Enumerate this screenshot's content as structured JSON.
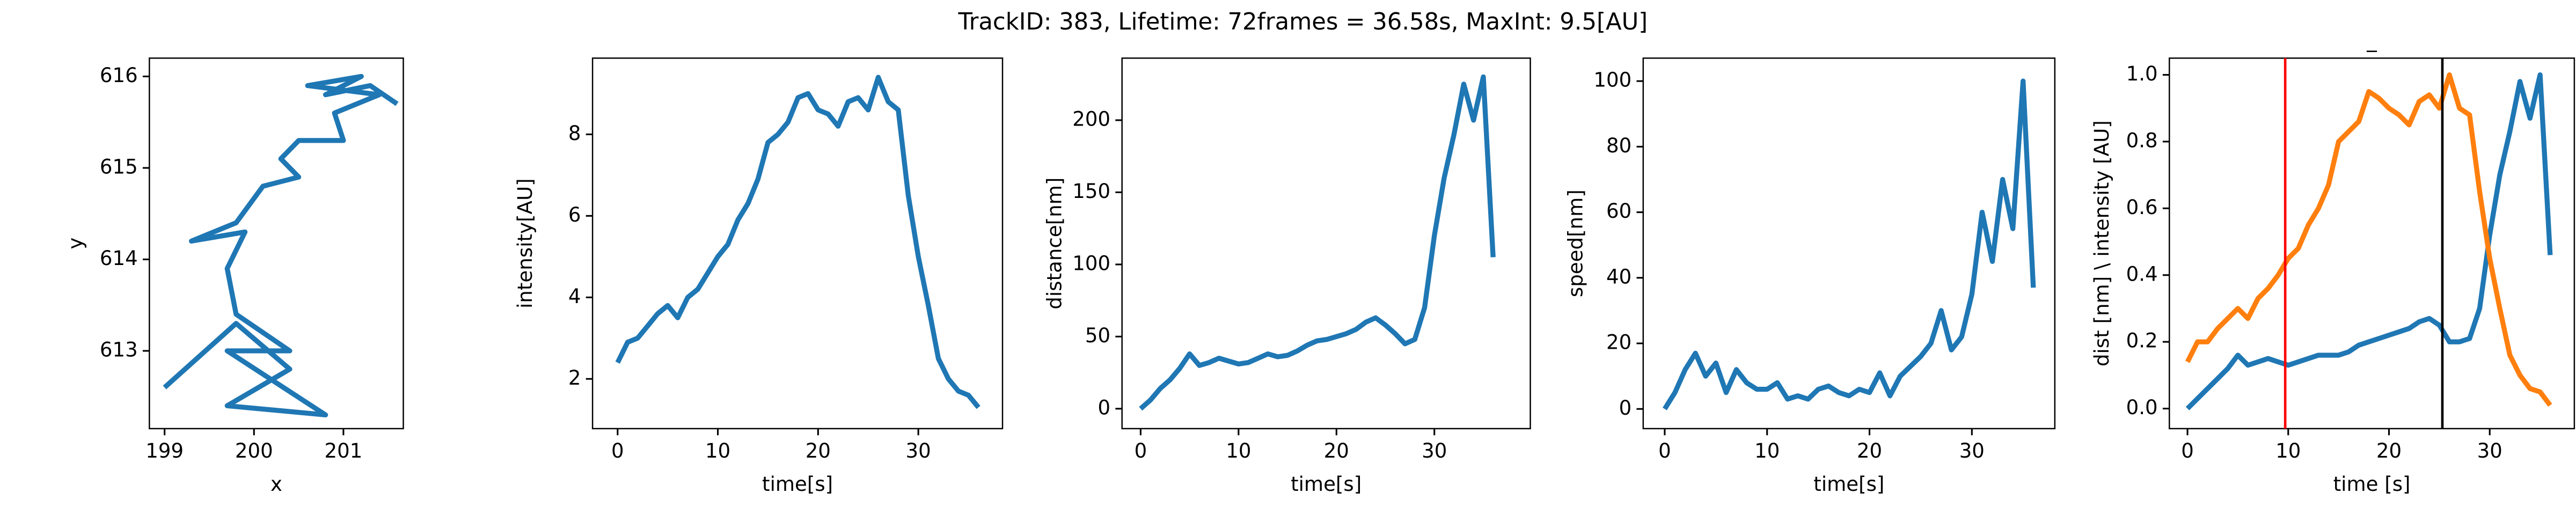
{
  "title": "TrackID: 383, Lifetime: 72frames = 36.58s, MaxInt: 9.5[AU]",
  "chart_data": [
    {
      "type": "line",
      "xlabel": "x",
      "ylabel": "y",
      "x": [
        201.6,
        201.3,
        200.8,
        201.2,
        200.6,
        201.4,
        200.9,
        201.0,
        200.5,
        200.3,
        200.5,
        200.1,
        199.8,
        199.3,
        199.9,
        199.7,
        199.8,
        200.4,
        199.7,
        200.8,
        199.7,
        200.4,
        199.8,
        199.0
      ],
      "series": [
        {
          "color": "#1f77b4",
          "values": [
            615.7,
            615.9,
            615.8,
            616.0,
            615.9,
            615.8,
            615.6,
            615.3,
            615.3,
            615.1,
            614.9,
            614.8,
            614.4,
            614.2,
            614.3,
            613.9,
            613.4,
            613.0,
            613.0,
            612.3,
            612.4,
            612.8,
            613.3,
            612.6
          ]
        }
      ],
      "xlim": [
        198.83,
        201.67
      ],
      "xticks": [
        199,
        200,
        201
      ],
      "ylim": [
        612.15,
        616.2
      ],
      "yticks": [
        613,
        614,
        615,
        616
      ]
    },
    {
      "type": "line",
      "xlabel": "time[s]",
      "ylabel": "intensity[AU]",
      "x": [
        0,
        1,
        2,
        3,
        4,
        5,
        6,
        7,
        8,
        9,
        10,
        11,
        12,
        13,
        14,
        15,
        16,
        17,
        18,
        19,
        20,
        21,
        22,
        23,
        24,
        25,
        26,
        27,
        28,
        29,
        30,
        31,
        32,
        33,
        34,
        35,
        36
      ],
      "series": [
        {
          "color": "#1f77b4",
          "values": [
            2.4,
            2.9,
            3.0,
            3.3,
            3.6,
            3.8,
            3.5,
            4.0,
            4.2,
            4.6,
            5.0,
            5.3,
            5.9,
            6.3,
            6.9,
            7.8,
            8.0,
            8.3,
            8.9,
            9.0,
            8.6,
            8.5,
            8.2,
            8.8,
            8.9,
            8.6,
            9.4,
            8.8,
            8.6,
            6.5,
            5.0,
            3.8,
            2.5,
            2.0,
            1.7,
            1.6,
            1.3
          ]
        }
      ],
      "xlim": [
        -2.5,
        38.4
      ],
      "xticks": [
        0,
        10,
        20,
        30
      ],
      "ylim": [
        0.78,
        9.87
      ],
      "yticks": [
        2,
        4,
        6,
        8
      ]
    },
    {
      "type": "line",
      "xlabel": "time[s]",
      "ylabel": "distance[nm]",
      "x": [
        0,
        1,
        2,
        3,
        4,
        5,
        6,
        7,
        8,
        9,
        10,
        11,
        12,
        13,
        14,
        15,
        16,
        17,
        18,
        19,
        20,
        21,
        22,
        23,
        24,
        25,
        26,
        27,
        28,
        29,
        30,
        31,
        32,
        33,
        34,
        35,
        36
      ],
      "series": [
        {
          "color": "#1f77b4",
          "values": [
            0,
            6,
            14,
            20,
            28,
            38,
            30,
            32,
            35,
            33,
            31,
            32,
            35,
            38,
            36,
            37,
            40,
            44,
            47,
            48,
            50,
            52,
            55,
            60,
            63,
            58,
            52,
            45,
            48,
            70,
            120,
            160,
            190,
            225,
            200,
            230,
            105
          ]
        }
      ],
      "xlim": [
        -1.9,
        39.8
      ],
      "xticks": [
        0,
        10,
        20,
        30
      ],
      "ylim": [
        -13.8,
        243
      ],
      "yticks": [
        0,
        50,
        100,
        150,
        200
      ]
    },
    {
      "type": "line",
      "xlabel": "time[s]",
      "ylabel": "speed[nm]",
      "x": [
        0,
        1,
        2,
        3,
        4,
        5,
        6,
        7,
        8,
        9,
        10,
        11,
        12,
        13,
        14,
        15,
        16,
        17,
        18,
        19,
        20,
        21,
        22,
        23,
        24,
        25,
        26,
        27,
        28,
        29,
        30,
        31,
        32,
        33,
        34,
        35,
        36
      ],
      "series": [
        {
          "color": "#1f77b4",
          "values": [
            0,
            5,
            12,
            17,
            10,
            14,
            5,
            12,
            8,
            6,
            6,
            8,
            3,
            4,
            3,
            6,
            7,
            5,
            4,
            6,
            5,
            11,
            4,
            10,
            13,
            16,
            20,
            30,
            18,
            22,
            35,
            60,
            45,
            70,
            55,
            100,
            37
          ]
        }
      ],
      "xlim": [
        -2.1,
        38.1
      ],
      "xticks": [
        0,
        10,
        20,
        30
      ],
      "ylim": [
        -6,
        107
      ],
      "yticks": [
        0,
        20,
        40,
        60,
        80,
        100
      ]
    },
    {
      "type": "line",
      "title": "_",
      "xlabel": "time [s]",
      "ylabel": "dist [nm] \\ intensity [AU]",
      "x": [
        0,
        1,
        2,
        3,
        4,
        5,
        6,
        7,
        8,
        9,
        10,
        11,
        12,
        13,
        14,
        15,
        16,
        17,
        18,
        19,
        20,
        21,
        22,
        23,
        24,
        25,
        26,
        27,
        28,
        29,
        30,
        31,
        32,
        33,
        34,
        35,
        36
      ],
      "series": [
        {
          "color": "#1f77b4",
          "values": [
            0,
            0.03,
            0.06,
            0.09,
            0.12,
            0.16,
            0.13,
            0.14,
            0.15,
            0.14,
            0.13,
            0.14,
            0.15,
            0.16,
            0.16,
            0.16,
            0.17,
            0.19,
            0.2,
            0.21,
            0.22,
            0.23,
            0.24,
            0.26,
            0.27,
            0.25,
            0.2,
            0.2,
            0.21,
            0.3,
            0.52,
            0.7,
            0.83,
            0.98,
            0.87,
            1.0,
            0.46
          ]
        },
        {
          "color": "#ff7f0e",
          "values": [
            0.14,
            0.2,
            0.2,
            0.24,
            0.27,
            0.3,
            0.27,
            0.33,
            0.36,
            0.4,
            0.45,
            0.48,
            0.55,
            0.6,
            0.67,
            0.8,
            0.83,
            0.86,
            0.95,
            0.93,
            0.9,
            0.88,
            0.85,
            0.92,
            0.94,
            0.9,
            1.0,
            0.9,
            0.88,
            0.65,
            0.45,
            0.3,
            0.16,
            0.1,
            0.06,
            0.05,
            0.01
          ]
        }
      ],
      "vlines": [
        {
          "x": 9.7,
          "color": "red"
        },
        {
          "x": 25.3,
          "color": "black"
        }
      ],
      "xlim": [
        -1.8,
        38.4
      ],
      "xticks": [
        0,
        10,
        20,
        30
      ],
      "ylim": [
        -0.06,
        1.05
      ],
      "yticks": [
        {
          "value": 0,
          "label": "0.0"
        },
        {
          "value": 0.2,
          "label": "0.2"
        },
        {
          "value": 0.4,
          "label": "0.4"
        },
        {
          "value": 0.6,
          "label": "0.6"
        },
        {
          "value": 0.8,
          "label": "0.8"
        },
        {
          "value": 1,
          "label": "1.0"
        }
      ]
    }
  ]
}
